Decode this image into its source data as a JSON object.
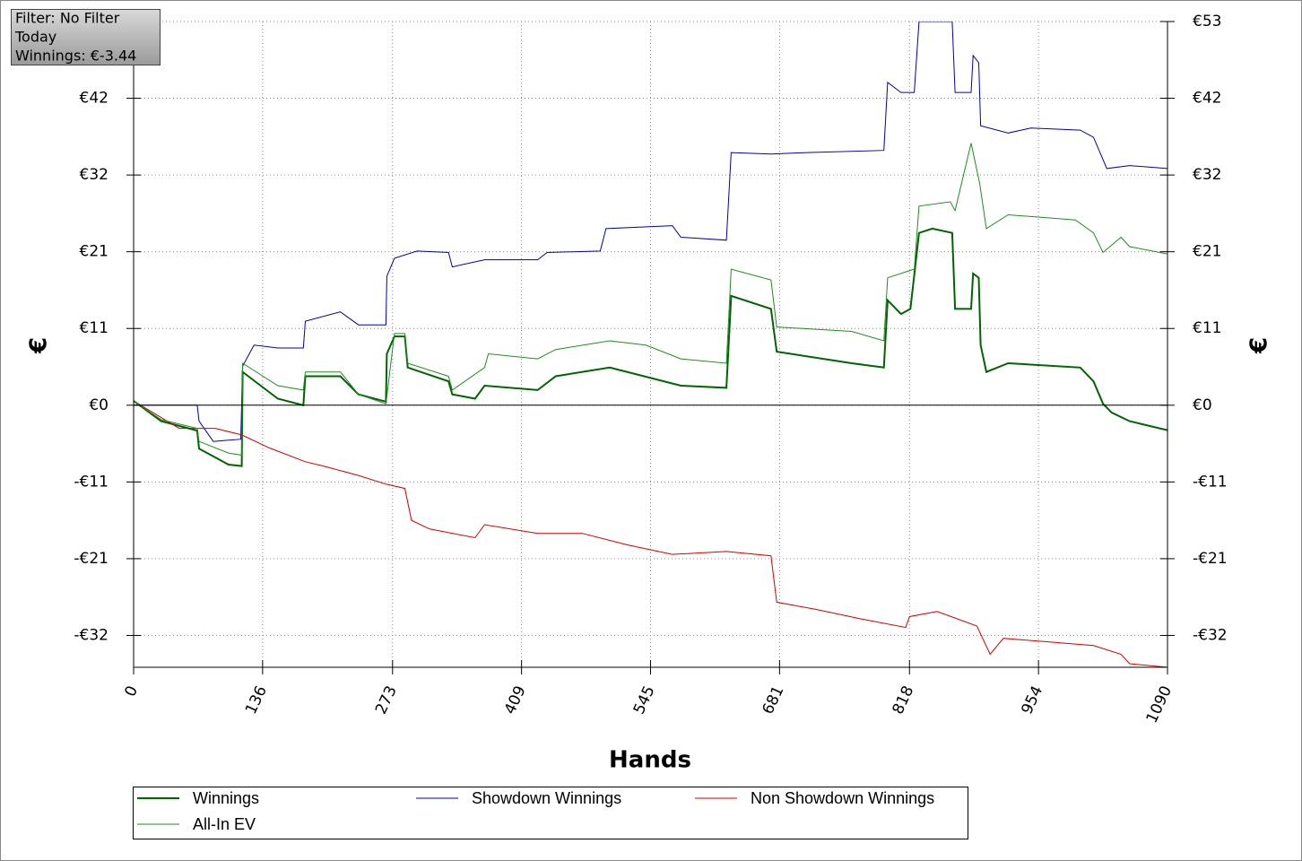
{
  "chart_data": {
    "type": "line",
    "info": [
      "Filter: No Filter",
      "Today",
      "Winnings: €-3.44"
    ],
    "x_label": "Hands",
    "y_label": "€",
    "y2_label": "€",
    "xlim": [
      0,
      1090
    ],
    "xticks": [
      0,
      136,
      273,
      409,
      545,
      681,
      818,
      954,
      1090
    ],
    "ylim": [
      -36.2,
      53
    ],
    "yticks": [
      {
        "value": -31.8,
        "label": "-€32"
      },
      {
        "value": -21.2,
        "label": "-€21"
      },
      {
        "value": -10.6,
        "label": "-€11"
      },
      {
        "value": 0,
        "label": "€0"
      },
      {
        "value": 10.6,
        "label": "€11"
      },
      {
        "value": 21.2,
        "label": "€21"
      },
      {
        "value": 31.8,
        "label": "€32"
      },
      {
        "value": 42.4,
        "label": "€42"
      },
      {
        "value": 53,
        "label": "€53"
      }
    ],
    "grid": true,
    "zero_line": true,
    "legend": "bottom",
    "series": [
      {
        "name": "Winnings",
        "color": "#006400",
        "width": 2,
        "x": [
          0,
          29,
          67,
          69,
          100,
          114,
          115,
          152,
          179,
          181,
          218,
          237,
          266,
          267,
          275,
          286,
          289,
          332,
          336,
          360,
          370,
          426,
          445,
          502,
          577,
          625,
          630,
          672,
          678,
          757,
          791,
          795,
          809,
          819,
          828,
          842,
          863,
          866,
          883,
          885,
          891,
          893,
          899,
          922,
          998,
          1012,
          1022,
          1031,
          1050,
          1090
        ],
        "values": [
          0.6,
          -2.2,
          -3.5,
          -6.0,
          -8.2,
          -8.4,
          4.6,
          0.9,
          0.0,
          4.0,
          4.0,
          1.5,
          0.5,
          7.1,
          9.5,
          9.5,
          5.2,
          3.3,
          1.5,
          0.9,
          2.7,
          2.1,
          4.0,
          5.2,
          2.7,
          2.4,
          15.1,
          13.3,
          7.4,
          5.8,
          5.2,
          14.5,
          12.6,
          13.3,
          23.8,
          24.4,
          23.8,
          13.3,
          13.3,
          18.2,
          17.6,
          8.3,
          4.6,
          5.8,
          5.2,
          3.3,
          0.2,
          -1.0,
          -2.2,
          -3.44
        ]
      },
      {
        "name": "Showdown Winnings",
        "color": "#0000a8",
        "width": 1,
        "x": [
          0,
          67,
          69,
          84,
          113,
          115,
          127,
          152,
          179,
          181,
          218,
          237,
          266,
          267,
          275,
          299,
          332,
          336,
          370,
          426,
          436,
          492,
          498,
          568,
          577,
          625,
          630,
          672,
          710,
          791,
          795,
          809,
          823,
          828,
          863,
          866,
          883,
          885,
          891,
          893,
          922,
          946,
          998,
          1012,
          1026,
          1050,
          1090
        ],
        "values": [
          0,
          0,
          -2.2,
          -5.0,
          -4.7,
          5.4,
          8.3,
          7.9,
          7.9,
          11.6,
          12.9,
          11.1,
          11.1,
          17.8,
          20.3,
          21.3,
          21.1,
          19.1,
          20.1,
          20.1,
          21.1,
          21.3,
          24.4,
          24.8,
          23.2,
          22.8,
          34.9,
          34.7,
          34.9,
          35.2,
          44.6,
          43.2,
          43.2,
          53,
          53,
          43.2,
          43.2,
          48.3,
          47.3,
          38.6,
          37.6,
          38.3,
          38.0,
          37.0,
          32.7,
          33.1,
          32.7
        ]
      },
      {
        "name": "Non Showdown Winnings",
        "color": "#d00000",
        "width": 1,
        "x": [
          0,
          48,
          86,
          114,
          143,
          181,
          200,
          237,
          266,
          286,
          293,
          312,
          360,
          370,
          426,
          473,
          521,
          568,
          625,
          672,
          678,
          719,
          766,
          814,
          818,
          847,
          889,
          903,
          917,
          955,
          1012,
          1041,
          1050,
          1090
        ],
        "values": [
          0.6,
          -3.2,
          -3.2,
          -4.1,
          -5.9,
          -7.8,
          -8.4,
          -9.7,
          -10.9,
          -11.5,
          -15.9,
          -17.1,
          -18.3,
          -16.5,
          -17.7,
          -17.7,
          -19.3,
          -20.6,
          -20.2,
          -20.8,
          -27.2,
          -28.2,
          -29.5,
          -30.7,
          -29.2,
          -28.5,
          -30.5,
          -34.4,
          -32.2,
          -32.6,
          -33.2,
          -34.4,
          -35.7,
          -36.2
        ]
      },
      {
        "name": "All-In EV",
        "color": "#228b22",
        "width": 1,
        "x": [
          0,
          29,
          67,
          69,
          100,
          114,
          115,
          152,
          179,
          181,
          218,
          237,
          266,
          275,
          286,
          289,
          332,
          336,
          370,
          374,
          426,
          445,
          502,
          540,
          577,
          625,
          630,
          672,
          678,
          757,
          791,
          795,
          823,
          828,
          861,
          866,
          883,
          892,
          899,
          922,
          993,
          1012,
          1022,
          1041,
          1050,
          1090
        ],
        "values": [
          0.6,
          -2.0,
          -3.2,
          -5.0,
          -6.6,
          -6.9,
          5.8,
          2.7,
          2.1,
          4.6,
          4.6,
          1.5,
          0.2,
          9.9,
          9.9,
          5.8,
          4.0,
          2.1,
          5.2,
          7.1,
          6.4,
          7.7,
          8.9,
          8.3,
          6.4,
          5.8,
          18.8,
          17.3,
          10.8,
          10.2,
          8.9,
          17.6,
          18.8,
          27.5,
          28.1,
          26.9,
          36.2,
          30.6,
          24.4,
          26.3,
          25.6,
          23.8,
          21.1,
          23.2,
          21.9,
          20.9
        ]
      }
    ]
  }
}
